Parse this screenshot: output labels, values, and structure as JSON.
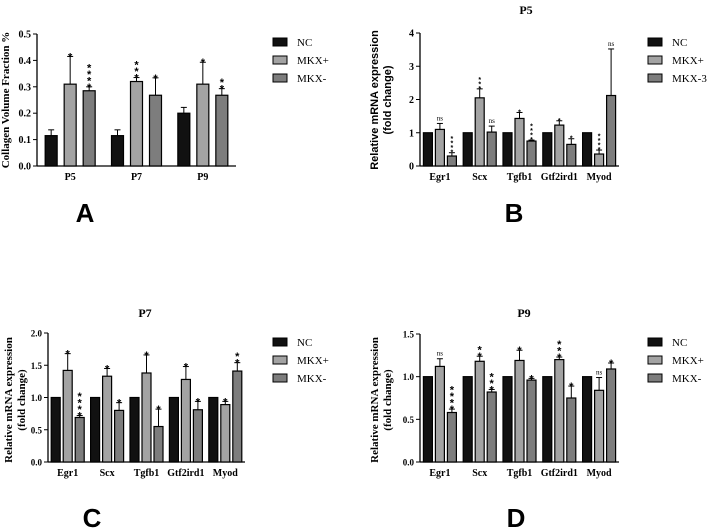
{
  "colors": {
    "NC": "#111111",
    "MKX+": "#a3a3a3",
    "MKX-": "#7d7d7d"
  },
  "chart_data": [
    {
      "panel_label": "A",
      "type": "bar",
      "title": "",
      "ylabel": [
        "Collagen Volume Fraction %"
      ],
      "ylim": [
        0,
        0.5
      ],
      "yticks": [
        "0.0",
        "0.1",
        "0.2",
        "0.3",
        "0.4",
        "0.5"
      ],
      "categories": [
        "P5",
        "P7",
        "P9"
      ],
      "legend": "right",
      "series": [
        {
          "name": "NC",
          "values": [
            0.115,
            0.115,
            0.2
          ],
          "errors": [
            0.022,
            0.022,
            0.022
          ],
          "sig": [
            "",
            "",
            ""
          ]
        },
        {
          "name": "MKX+",
          "values": [
            0.31,
            0.32,
            0.31
          ],
          "errors": [
            0.105,
            0.015,
            0.083
          ],
          "sig": [
            "*",
            "***",
            "*"
          ]
        },
        {
          "name": "MKX-",
          "values": [
            0.285,
            0.268,
            0.268
          ],
          "errors": [
            0.015,
            0.066,
            0.025
          ],
          "sig": [
            "****",
            "*",
            "**"
          ]
        }
      ]
    },
    {
      "panel_label": "B",
      "type": "bar",
      "title": "P5",
      "ylabel": [
        "Relative mRNA expression",
        "(fold change)"
      ],
      "ylim": [
        0,
        4
      ],
      "yticks": [
        "0",
        "1",
        "2",
        "3",
        "4"
      ],
      "categories": [
        "Egr1",
        "Scx",
        "Tgfb1",
        "Gtf2ird1",
        "Myod"
      ],
      "legend": "right",
      "series": [
        {
          "name": "NC",
          "values": [
            1,
            1,
            1,
            1,
            1
          ],
          "errors": [
            0,
            0,
            0,
            0,
            0
          ],
          "sig": [
            "",
            "",
            "",
            "",
            ""
          ]
        },
        {
          "name": "MKX+",
          "values": [
            1.1,
            2.05,
            1.43,
            1.23,
            0.36
          ],
          "errors": [
            0.18,
            0.27,
            0.18,
            0.13,
            0.12
          ],
          "sig": [
            "ns",
            "***",
            "*",
            "*",
            "****"
          ]
        },
        {
          "name": "MKX-3",
          "values": [
            0.3,
            1.02,
            0.75,
            0.65,
            2.12
          ],
          "errors": [
            0.1,
            0.18,
            0.03,
            0.17,
            1.4
          ],
          "sig": [
            "****",
            "ns",
            "****",
            "*",
            "ns"
          ]
        }
      ]
    },
    {
      "panel_label": "C",
      "type": "bar",
      "title": "P7",
      "ylabel": [
        "Relative mRNA expression",
        "(fold change)"
      ],
      "ylim": [
        0,
        2
      ],
      "yticks": [
        "0.0",
        "0.5",
        "1.0",
        "1.5",
        "2.0"
      ],
      "categories": [
        "Egr1",
        "Scx",
        "Tgfb1",
        "Gtf2ird1",
        "Myod"
      ],
      "legend": "right",
      "series": [
        {
          "name": "NC",
          "values": [
            1,
            1,
            1,
            1,
            1
          ],
          "errors": [
            0,
            0,
            0,
            0,
            0
          ],
          "sig": [
            "",
            "",
            "",
            "",
            ""
          ]
        },
        {
          "name": "MKX+",
          "values": [
            1.42,
            1.33,
            1.38,
            1.28,
            0.89
          ],
          "errors": [
            0.26,
            0.12,
            0.28,
            0.2,
            0.05
          ],
          "sig": [
            "*",
            "*",
            "*",
            "*",
            "*"
          ]
        },
        {
          "name": "MKX-",
          "values": [
            0.69,
            0.8,
            0.55,
            0.81,
            1.41
          ],
          "errors": [
            0.03,
            0.12,
            0.27,
            0.13,
            0.13
          ],
          "sig": [
            "****",
            "*",
            "*",
            "*",
            "**"
          ]
        }
      ]
    },
    {
      "panel_label": "D",
      "type": "bar",
      "title": "P9",
      "ylabel": [
        "Relative mRNA expression",
        "(fold change)"
      ],
      "ylim": [
        0,
        1.5
      ],
      "yticks": [
        "0.0",
        "0.5",
        "1.0",
        "1.5"
      ],
      "categories": [
        "Egr1",
        "Scx",
        "Tgfb1",
        "Gtf2ird1",
        "Myod"
      ],
      "legend": "right",
      "series": [
        {
          "name": "NC",
          "values": [
            1,
            1,
            1,
            1,
            1
          ],
          "errors": [
            0,
            0,
            0,
            0,
            0
          ],
          "sig": [
            "",
            "",
            "",
            "",
            ""
          ]
        },
        {
          "name": "MKX+",
          "values": [
            1.12,
            1.18,
            1.19,
            1.2,
            0.84
          ],
          "errors": [
            0.09,
            0.06,
            0.12,
            0.03,
            0.15
          ],
          "sig": [
            "ns",
            "**",
            "*",
            "***",
            "ns"
          ]
        },
        {
          "name": "MKX-",
          "values": [
            0.58,
            0.82,
            0.96,
            0.75,
            1.09
          ],
          "errors": [
            0.04,
            0.03,
            0.02,
            0.14,
            0.07
          ],
          "sig": [
            "****",
            "***",
            "*",
            "*",
            "*"
          ]
        }
      ]
    }
  ]
}
